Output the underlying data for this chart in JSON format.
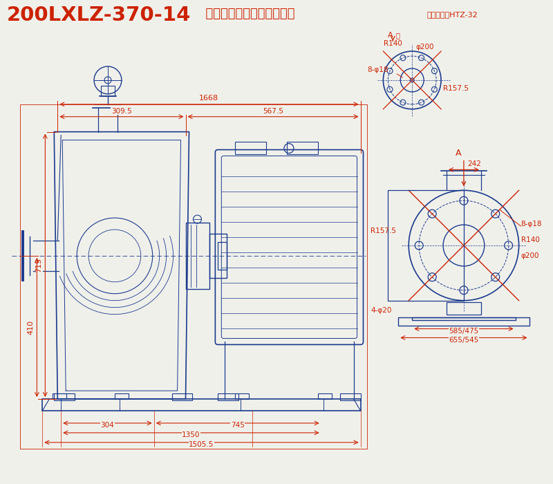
{
  "title_main": "200LXLZ-370-14",
  "title_sub": "  型纸浆泵外形图及安装尺寸",
  "title_ref": "底座件号：HTZ-32",
  "bg_color": "#f0f0eb",
  "dim_color": "#cc2200",
  "draw_color": "#1a3a8c",
  "dims": {
    "d1668": "1668",
    "d309_5": "309.5",
    "d567_5": "567.5",
    "d715": "715",
    "d410": "410",
    "d304": "304",
    "d745": "745",
    "d1350": "1350",
    "d1505_5": "1505.5",
    "d242": "242",
    "r140": "R140",
    "r157_5": "R157.5",
    "phi200": "φ200",
    "phi18_8": "8-φ18",
    "phi20_4": "4-φ20",
    "d585_475": "585/475",
    "d655_545": "655/545",
    "A_label": "A",
    "A_dir": "向"
  }
}
